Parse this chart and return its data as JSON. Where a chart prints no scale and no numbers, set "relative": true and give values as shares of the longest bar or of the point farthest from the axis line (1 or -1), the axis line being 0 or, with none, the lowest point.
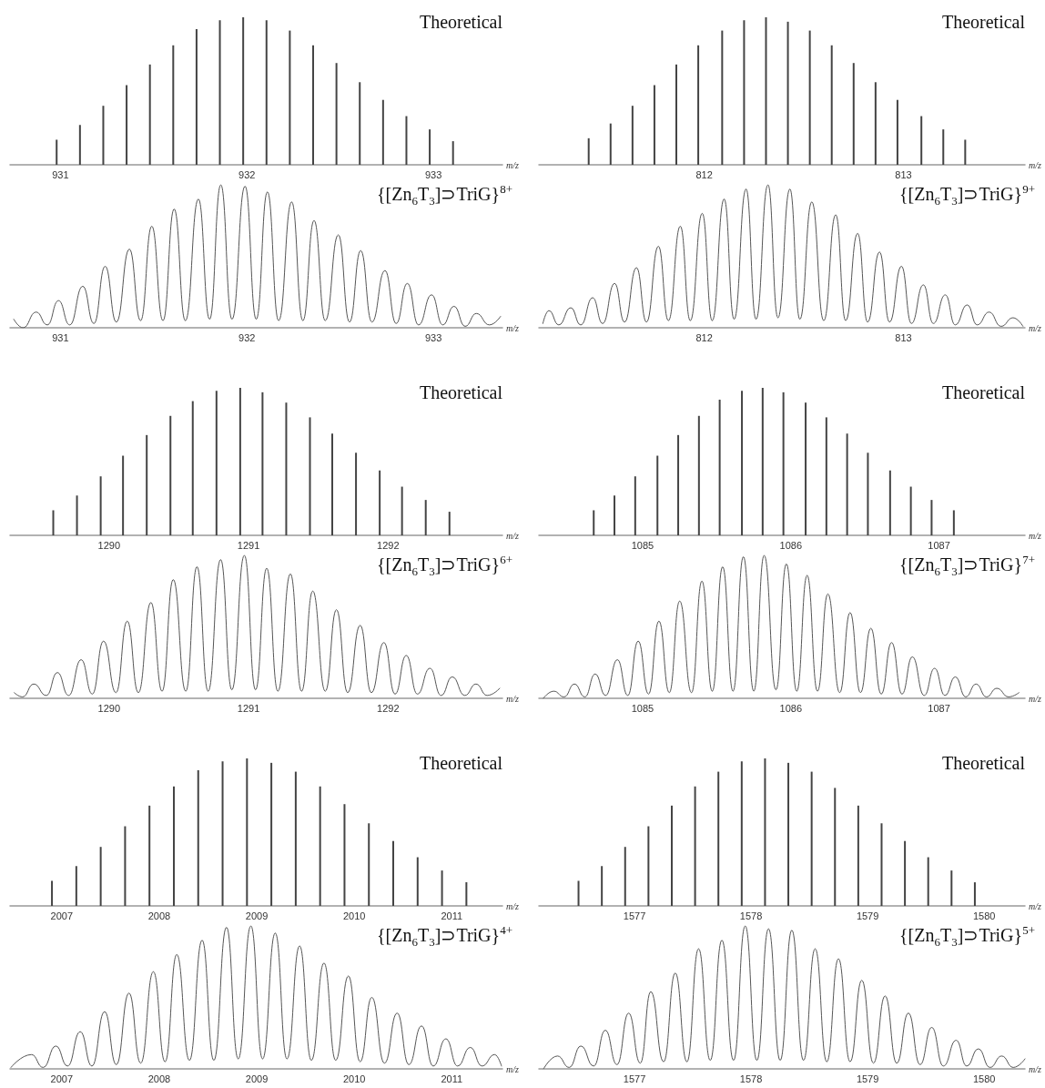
{
  "chart_data": [
    {
      "type": "bar",
      "title": "Theoretical",
      "xlabel": "m/z",
      "relative": true,
      "color": "#444444",
      "xlim": [
        930.73,
        933.37
      ],
      "xticks": [
        931,
        932,
        933
      ],
      "x": [
        930.98,
        931.105,
        931.23,
        931.355,
        931.48,
        931.605,
        931.73,
        931.855,
        931.98,
        932.105,
        932.23,
        932.355,
        932.48,
        932.605,
        932.73,
        932.855,
        932.98,
        933.105
      ],
      "values": [
        0.17,
        0.27,
        0.4,
        0.54,
        0.68,
        0.81,
        0.92,
        0.98,
        1,
        0.98,
        0.91,
        0.81,
        0.69,
        0.56,
        0.44,
        0.33,
        0.24,
        0.16
      ]
    },
    {
      "type": "bar",
      "title": "Theoretical",
      "xlabel": "m/z",
      "relative": true,
      "color": "#444444",
      "xlim": [
        811.17,
        813.61
      ],
      "xticks": [
        812,
        813
      ],
      "x": [
        811.42,
        811.53,
        811.64,
        811.75,
        811.86,
        811.97,
        812.09,
        812.2,
        812.31,
        812.42,
        812.53,
        812.64,
        812.75,
        812.86,
        812.97,
        813.09,
        813.2,
        813.31
      ],
      "values": [
        0.18,
        0.28,
        0.4,
        0.54,
        0.68,
        0.81,
        0.91,
        0.98,
        1,
        0.97,
        0.91,
        0.81,
        0.69,
        0.56,
        0.44,
        0.33,
        0.24,
        0.17
      ]
    },
    {
      "type": "line",
      "title": "{[Zn$_{6}$T$_{3}$]⊃TriG}$^{8+}$",
      "xlabel": "m/z",
      "relative": true,
      "color": "#555555",
      "xlim": [
        930.73,
        933.37
      ],
      "xticks": [
        931,
        932,
        933
      ],
      "x": [
        930.75,
        930.8,
        930.87,
        930.93,
        930.99,
        931.05,
        931.12,
        931.18,
        931.24,
        931.3,
        931.37,
        931.43,
        931.49,
        931.55,
        931.61,
        931.67,
        931.74,
        931.8,
        931.86,
        931.92,
        931.99,
        932.05,
        932.11,
        932.17,
        932.24,
        932.3,
        932.36,
        932.42,
        932.49,
        932.55,
        932.61,
        932.67,
        932.74,
        932.8,
        932.86,
        932.92,
        932.99,
        933.05,
        933.11,
        933.17,
        933.23,
        933.3,
        933.36
      ],
      "values": [
        0.06,
        0,
        0.11,
        0.02,
        0.19,
        0.02,
        0.29,
        0.03,
        0.43,
        0.04,
        0.55,
        0.05,
        0.71,
        0.05,
        0.83,
        0.05,
        0.9,
        0.06,
        1,
        0.06,
        0.99,
        0.06,
        0.95,
        0.05,
        0.88,
        0.05,
        0.75,
        0.05,
        0.65,
        0.04,
        0.54,
        0.04,
        0.4,
        0.03,
        0.31,
        0.02,
        0.23,
        0.02,
        0.15,
        0.01,
        0.1,
        0.02,
        0.08
      ]
    },
    {
      "type": "line",
      "title": "{[Zn$_{6}$T$_{3}$]⊃TriG}$^{9+}$",
      "xlabel": "m/z",
      "relative": true,
      "color": "#555555",
      "xlim": [
        811.17,
        813.61
      ],
      "xticks": [
        812,
        813
      ],
      "x": [
        811.19,
        811.22,
        811.27,
        811.33,
        811.38,
        811.44,
        811.49,
        811.55,
        811.6,
        811.66,
        811.71,
        811.77,
        811.82,
        811.88,
        811.93,
        811.99,
        812.04,
        812.1,
        812.15,
        812.21,
        812.26,
        812.32,
        812.37,
        812.43,
        812.48,
        812.54,
        812.6,
        812.66,
        812.71,
        812.77,
        812.82,
        812.88,
        812.93,
        812.99,
        813.04,
        813.1,
        813.15,
        813.21,
        813.26,
        813.32,
        813.37,
        813.43,
        813.49,
        813.55,
        813.6
      ],
      "values": [
        0.03,
        0.12,
        0.02,
        0.14,
        0.02,
        0.21,
        0.03,
        0.31,
        0.04,
        0.42,
        0.04,
        0.57,
        0.05,
        0.71,
        0.05,
        0.8,
        0.05,
        0.9,
        0.06,
        0.97,
        0.06,
        1,
        0.07,
        0.97,
        0.06,
        0.88,
        0.05,
        0.79,
        0.05,
        0.66,
        0.04,
        0.53,
        0.04,
        0.43,
        0.03,
        0.3,
        0.03,
        0.23,
        0.02,
        0.16,
        0.02,
        0.11,
        0.01,
        0.07,
        0.01
      ]
    },
    {
      "type": "bar",
      "title": "Theoretical",
      "xlabel": "m/z",
      "relative": true,
      "color": "#444444",
      "xlim": [
        1289.29,
        1292.82
      ],
      "xticks": [
        1290,
        1291,
        1292
      ],
      "x": [
        1289.6,
        1289.77,
        1289.94,
        1290.1,
        1290.27,
        1290.44,
        1290.6,
        1290.77,
        1290.94,
        1291.1,
        1291.27,
        1291.44,
        1291.6,
        1291.77,
        1291.94,
        1292.1,
        1292.27,
        1292.44
      ],
      "values": [
        0.17,
        0.27,
        0.4,
        0.54,
        0.68,
        0.81,
        0.91,
        0.98,
        1,
        0.97,
        0.9,
        0.8,
        0.69,
        0.56,
        0.44,
        0.33,
        0.24,
        0.16
      ]
    },
    {
      "type": "bar",
      "title": "Theoretical",
      "xlabel": "m/z",
      "relative": true,
      "color": "#444444",
      "xlim": [
        1084.3,
        1087.58
      ],
      "xticks": [
        1085,
        1086,
        1087
      ],
      "x": [
        1084.67,
        1084.81,
        1084.95,
        1085.1,
        1085.24,
        1085.38,
        1085.52,
        1085.67,
        1085.81,
        1085.95,
        1086.1,
        1086.24,
        1086.38,
        1086.52,
        1086.67,
        1086.81,
        1086.95,
        1087.1
      ],
      "values": [
        0.17,
        0.27,
        0.4,
        0.54,
        0.68,
        0.81,
        0.92,
        0.98,
        1,
        0.97,
        0.9,
        0.8,
        0.69,
        0.56,
        0.44,
        0.33,
        0.24,
        0.17
      ]
    },
    {
      "type": "line",
      "title": "{[Zn$_{6}$T$_{3}$]⊃TriG}$^{6+}$",
      "xlabel": "m/z",
      "relative": true,
      "color": "#555555",
      "xlim": [
        1289.29,
        1292.82
      ],
      "xticks": [
        1290,
        1291,
        1292
      ],
      "x": [
        1289.32,
        1289.38,
        1289.46,
        1289.55,
        1289.63,
        1289.71,
        1289.8,
        1289.88,
        1289.96,
        1290.05,
        1290.13,
        1290.21,
        1290.3,
        1290.38,
        1290.46,
        1290.55,
        1290.63,
        1290.71,
        1290.8,
        1290.88,
        1290.97,
        1291.05,
        1291.13,
        1291.21,
        1291.3,
        1291.38,
        1291.46,
        1291.55,
        1291.63,
        1291.71,
        1291.8,
        1291.88,
        1291.97,
        1292.05,
        1292.13,
        1292.21,
        1292.3,
        1292.38,
        1292.46,
        1292.55,
        1292.63,
        1292.71,
        1292.8
      ],
      "values": [
        0.04,
        0.01,
        0.1,
        0.02,
        0.18,
        0.02,
        0.27,
        0.03,
        0.4,
        0.04,
        0.54,
        0.04,
        0.67,
        0.05,
        0.83,
        0.05,
        0.92,
        0.05,
        0.97,
        0.06,
        1,
        0.06,
        0.91,
        0.05,
        0.87,
        0.05,
        0.75,
        0.05,
        0.62,
        0.04,
        0.51,
        0.04,
        0.39,
        0.03,
        0.3,
        0.03,
        0.21,
        0.02,
        0.15,
        0.02,
        0.1,
        0.02,
        0.07
      ]
    },
    {
      "type": "line",
      "title": "{[Zn$_{6}$T$_{3}$]⊃TriG}$^{7+}$",
      "xlabel": "m/z",
      "relative": true,
      "color": "#555555",
      "xlim": [
        1084.3,
        1087.58
      ],
      "xticks": [
        1085,
        1086,
        1087
      ],
      "x": [
        1084.33,
        1084.4,
        1084.47,
        1084.54,
        1084.61,
        1084.68,
        1084.75,
        1084.83,
        1084.9,
        1084.97,
        1085.04,
        1085.11,
        1085.18,
        1085.25,
        1085.33,
        1085.4,
        1085.47,
        1085.54,
        1085.61,
        1085.68,
        1085.75,
        1085.82,
        1085.9,
        1085.97,
        1086.04,
        1086.11,
        1086.18,
        1086.25,
        1086.33,
        1086.4,
        1086.47,
        1086.54,
        1086.61,
        1086.68,
        1086.75,
        1086.82,
        1086.9,
        1086.97,
        1087.04,
        1087.11,
        1087.18,
        1087.25,
        1087.32,
        1087.39,
        1087.47,
        1087.54
      ],
      "values": [
        0,
        0.05,
        0.01,
        0.1,
        0.01,
        0.17,
        0.02,
        0.27,
        0.02,
        0.4,
        0.03,
        0.54,
        0.04,
        0.68,
        0.04,
        0.82,
        0.05,
        0.92,
        0.05,
        0.99,
        0.05,
        1,
        0.06,
        0.94,
        0.05,
        0.86,
        0.05,
        0.73,
        0.04,
        0.6,
        0.04,
        0.49,
        0.03,
        0.39,
        0.03,
        0.29,
        0.02,
        0.21,
        0.02,
        0.15,
        0.01,
        0.1,
        0.01,
        0.07,
        0.01,
        0.04
      ]
    },
    {
      "type": "bar",
      "title": "Theoretical",
      "xlabel": "m/z",
      "relative": true,
      "color": "#444444",
      "xlim": [
        2006.47,
        2011.52
      ],
      "xticks": [
        2007,
        2008,
        2009,
        2010,
        2011
      ],
      "x": [
        2006.9,
        2007.15,
        2007.4,
        2007.65,
        2007.9,
        2008.15,
        2008.4,
        2008.65,
        2008.9,
        2009.15,
        2009.4,
        2009.65,
        2009.9,
        2010.15,
        2010.4,
        2010.65,
        2010.9,
        2011.15
      ],
      "values": [
        0.17,
        0.27,
        0.4,
        0.54,
        0.68,
        0.81,
        0.92,
        0.98,
        1,
        0.97,
        0.91,
        0.81,
        0.69,
        0.56,
        0.44,
        0.33,
        0.24,
        0.16
      ]
    },
    {
      "type": "bar",
      "title": "Theoretical",
      "xlabel": "m/z",
      "relative": true,
      "color": "#444444",
      "xlim": [
        1576.18,
        1580.35
      ],
      "xticks": [
        1577,
        1578,
        1579,
        1580
      ],
      "x": [
        1576.52,
        1576.72,
        1576.92,
        1577.12,
        1577.32,
        1577.52,
        1577.72,
        1577.92,
        1578.12,
        1578.32,
        1578.52,
        1578.72,
        1578.92,
        1579.12,
        1579.32,
        1579.52,
        1579.72,
        1579.92
      ],
      "values": [
        0.17,
        0.27,
        0.4,
        0.54,
        0.68,
        0.81,
        0.91,
        0.98,
        1,
        0.97,
        0.91,
        0.8,
        0.68,
        0.56,
        0.44,
        0.33,
        0.24,
        0.16
      ]
    },
    {
      "type": "line",
      "title": "{[Zn$_{6}$T$_{3}$]⊃TriG}$^{4+}$",
      "xlabel": "m/z",
      "relative": true,
      "color": "#555555",
      "xlim": [
        2006.47,
        2011.52
      ],
      "xticks": [
        2007,
        2008,
        2009,
        2010,
        2011
      ],
      "x": [
        2006.48,
        2006.69,
        2006.81,
        2006.94,
        2007.06,
        2007.19,
        2007.31,
        2007.44,
        2007.56,
        2007.69,
        2007.81,
        2007.94,
        2008.06,
        2008.18,
        2008.31,
        2008.44,
        2008.56,
        2008.69,
        2008.81,
        2008.94,
        2009.06,
        2009.19,
        2009.31,
        2009.44,
        2009.56,
        2009.69,
        2009.81,
        2009.94,
        2010.06,
        2010.18,
        2010.31,
        2010.44,
        2010.56,
        2010.69,
        2010.81,
        2010.94,
        2011.06,
        2011.19,
        2011.31,
        2011.44,
        2011.51
      ],
      "values": [
        0.01,
        0.1,
        0.01,
        0.16,
        0.02,
        0.26,
        0.02,
        0.4,
        0.03,
        0.53,
        0.04,
        0.68,
        0.05,
        0.8,
        0.06,
        0.9,
        0.06,
        0.99,
        0.07,
        1,
        0.07,
        0.95,
        0.07,
        0.86,
        0.06,
        0.74,
        0.06,
        0.65,
        0.05,
        0.5,
        0.04,
        0.39,
        0.03,
        0.3,
        0.02,
        0.21,
        0.02,
        0.15,
        0.02,
        0.1,
        0.02
      ]
    },
    {
      "type": "line",
      "title": "{[Zn$_{6}$T$_{3}$]⊃TriG}$^{5+}$",
      "xlabel": "m/z",
      "relative": true,
      "color": "#555555",
      "xlim": [
        1576.18,
        1580.35
      ],
      "xticks": [
        1577,
        1578,
        1579,
        1580
      ],
      "x": [
        1576.22,
        1576.34,
        1576.44,
        1576.54,
        1576.65,
        1576.75,
        1576.85,
        1576.95,
        1577.05,
        1577.14,
        1577.25,
        1577.35,
        1577.45,
        1577.55,
        1577.65,
        1577.75,
        1577.85,
        1577.95,
        1578.05,
        1578.15,
        1578.25,
        1578.35,
        1578.45,
        1578.55,
        1578.65,
        1578.75,
        1578.85,
        1578.95,
        1579.05,
        1579.15,
        1579.25,
        1579.35,
        1579.45,
        1579.55,
        1579.65,
        1579.76,
        1579.85,
        1579.95,
        1580.05,
        1580.15,
        1580.25,
        1580.35
      ],
      "values": [
        0,
        0.09,
        0.01,
        0.16,
        0.02,
        0.27,
        0.03,
        0.39,
        0.04,
        0.54,
        0.05,
        0.67,
        0.05,
        0.84,
        0.06,
        0.9,
        0.06,
        1,
        0.06,
        0.98,
        0.06,
        0.97,
        0.06,
        0.84,
        0.05,
        0.77,
        0.05,
        0.62,
        0.04,
        0.51,
        0.04,
        0.39,
        0.03,
        0.29,
        0.02,
        0.2,
        0.02,
        0.14,
        0.01,
        0.09,
        0.01,
        0.07
      ]
    }
  ]
}
